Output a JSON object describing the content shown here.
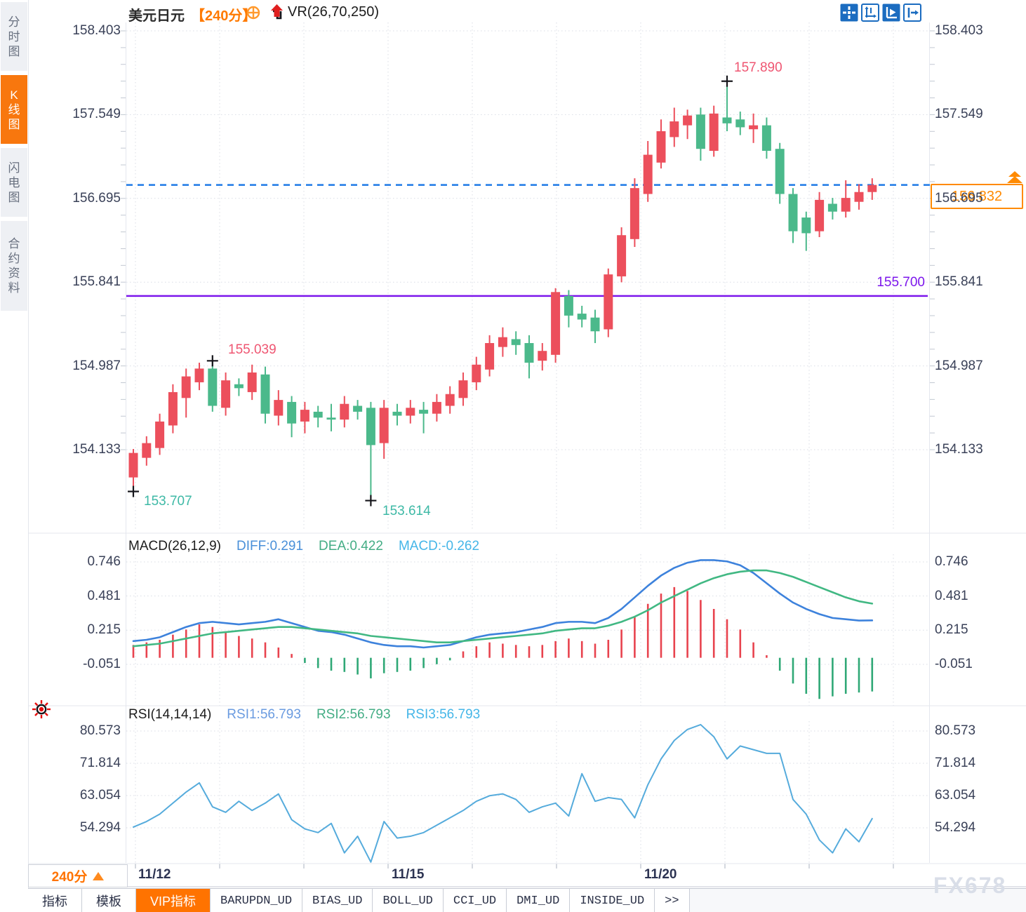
{
  "window": {
    "watermark": "FX678"
  },
  "sidebar": {
    "items": [
      {
        "key": "time-chart",
        "label": "分时图",
        "active": false
      },
      {
        "key": "candle-chart",
        "label": "K线图",
        "active": true
      },
      {
        "key": "lightning-chart",
        "label": "闪电图",
        "active": false
      },
      {
        "key": "contract-info",
        "label": "合约资料",
        "active": false
      }
    ]
  },
  "header": {
    "symbol": "美元日元",
    "period": "【240分】",
    "indicator": "VR(26,70,250)"
  },
  "toolbar": {
    "icons": [
      "crosshair",
      "axes-scale",
      "pointer-play",
      "exit-right"
    ]
  },
  "macd_header": {
    "name": "MACD(26,12,9)",
    "diff": "DIFF:0.291",
    "dea": "DEA:0.422",
    "macd": "MACD:-0.262"
  },
  "rsi_header": {
    "name": "RSI(14,14,14)",
    "rsi1": "RSI1:56.793",
    "rsi2": "RSI2:56.793",
    "rsi3": "RSI3:56.793"
  },
  "annotations": {
    "marked_high": "157.890",
    "swing_high": "155.039",
    "low_left": "153.707",
    "low_mid": "153.614",
    "purple_level": "155.700",
    "last_price": "156.832"
  },
  "bottom": {
    "period_label": "240分",
    "tabs": [
      {
        "key": "indicators",
        "label": "指标",
        "cn": true,
        "active": false
      },
      {
        "key": "templates",
        "label": "模板",
        "cn": true,
        "active": false
      },
      {
        "key": "vip-indicators",
        "label": "VIP指标",
        "cn": true,
        "active": true
      },
      {
        "key": "barupdn",
        "label": "BARUPDN_UD",
        "cn": false,
        "active": false
      },
      {
        "key": "bias",
        "label": "BIAS_UD",
        "cn": false,
        "active": false
      },
      {
        "key": "boll",
        "label": "BOLL_UD",
        "cn": false,
        "active": false
      },
      {
        "key": "cci",
        "label": "CCI_UD",
        "cn": false,
        "active": false
      },
      {
        "key": "dmi",
        "label": "DMI_UD",
        "cn": false,
        "active": false
      },
      {
        "key": "inside",
        "label": "INSIDE_UD",
        "cn": false,
        "active": false
      },
      {
        "key": "more",
        "label": ">>",
        "cn": false,
        "active": false
      }
    ]
  },
  "colors": {
    "accent_orange": "#ff7a00",
    "candle_up": "#ec4f5c",
    "candle_down": "#4bb98b",
    "dashed_line_blue": "#1e7ae6",
    "level_purple": "#7c16ec",
    "macd_diff_blue": "#3d82dc",
    "macd_dea_green": "#41b883",
    "rsi_line_blue": "#55abdc",
    "grid": "#d9dde5",
    "axis_text": "#3a4158"
  },
  "chart_data": {
    "type": "candlestick+macd+rsi",
    "title": "美元日元 240分 K线图",
    "price_axis_ticks": [
      "158.403",
      "157.549",
      "156.695",
      "155.841",
      "154.987",
      "154.133"
    ],
    "macd_axis_ticks": [
      "0.746",
      "0.481",
      "0.215",
      "-0.051"
    ],
    "rsi_axis_ticks": [
      "80.573",
      "71.814",
      "63.054",
      "54.294"
    ],
    "x_labels": [
      "11/12",
      "11/15",
      "11/20"
    ],
    "price_range": [
      154.133,
      158.403
    ],
    "levels": {
      "last_price": 156.832,
      "purple_line": 155.7,
      "marked_high": 157.89,
      "swing_high": 155.039,
      "low_left": 153.707,
      "low_mid": 153.614
    },
    "markers": [
      {
        "candle": 0,
        "at": "low"
      },
      {
        "candle": 6,
        "at": "high"
      },
      {
        "candle": 18,
        "at": "low"
      },
      {
        "candle": 45,
        "at": "high"
      }
    ],
    "candles_ochl_note": "arrays are [open, close, low, high]; close>open renders red (CN up), close<open renders green (CN down)",
    "candles": [
      [
        153.85,
        154.1,
        153.707,
        154.14
      ],
      [
        154.05,
        154.2,
        153.97,
        154.27
      ],
      [
        154.15,
        154.42,
        154.08,
        154.5
      ],
      [
        154.38,
        154.72,
        154.3,
        154.8
      ],
      [
        154.66,
        154.88,
        154.46,
        154.96
      ],
      [
        154.82,
        154.96,
        154.74,
        155.02
      ],
      [
        154.96,
        154.58,
        154.52,
        155.039
      ],
      [
        154.56,
        154.84,
        154.48,
        154.92
      ],
      [
        154.8,
        154.76,
        154.68,
        154.86
      ],
      [
        154.72,
        154.92,
        154.64,
        155.0
      ],
      [
        154.9,
        154.5,
        154.4,
        154.98
      ],
      [
        154.48,
        154.64,
        154.38,
        154.74
      ],
      [
        154.62,
        154.4,
        154.26,
        154.68
      ],
      [
        154.42,
        154.54,
        154.3,
        154.62
      ],
      [
        154.52,
        154.46,
        154.36,
        154.58
      ],
      [
        154.46,
        154.44,
        154.32,
        154.6
      ],
      [
        154.44,
        154.6,
        154.36,
        154.68
      ],
      [
        154.58,
        154.52,
        154.44,
        154.64
      ],
      [
        154.56,
        154.18,
        153.614,
        154.62
      ],
      [
        154.2,
        154.56,
        154.04,
        154.64
      ],
      [
        154.52,
        154.48,
        154.38,
        154.6
      ],
      [
        154.48,
        154.56,
        154.4,
        154.64
      ],
      [
        154.54,
        154.5,
        154.3,
        154.62
      ],
      [
        154.5,
        154.62,
        154.42,
        154.7
      ],
      [
        154.58,
        154.7,
        154.5,
        154.78
      ],
      [
        154.66,
        154.84,
        154.58,
        154.92
      ],
      [
        154.82,
        155.0,
        154.74,
        155.08
      ],
      [
        154.95,
        155.22,
        154.88,
        155.3
      ],
      [
        155.18,
        155.28,
        155.08,
        155.38
      ],
      [
        155.26,
        155.2,
        155.1,
        155.34
      ],
      [
        155.22,
        155.02,
        154.86,
        155.3
      ],
      [
        155.04,
        155.14,
        154.94,
        155.22
      ],
      [
        155.1,
        155.74,
        155.02,
        155.78
      ],
      [
        155.7,
        155.5,
        155.38,
        155.76
      ],
      [
        155.52,
        155.46,
        155.38,
        155.6
      ],
      [
        155.48,
        155.34,
        155.22,
        155.56
      ],
      [
        155.36,
        155.92,
        155.28,
        155.98
      ],
      [
        155.9,
        156.32,
        155.84,
        156.4
      ],
      [
        156.28,
        156.8,
        156.2,
        156.9
      ],
      [
        156.74,
        157.14,
        156.66,
        157.28
      ],
      [
        157.06,
        157.38,
        157.0,
        157.5
      ],
      [
        157.32,
        157.48,
        157.22,
        157.62
      ],
      [
        157.44,
        157.54,
        157.3,
        157.6
      ],
      [
        157.55,
        157.2,
        157.08,
        157.62
      ],
      [
        157.18,
        157.56,
        157.12,
        157.64
      ],
      [
        157.52,
        157.46,
        157.38,
        157.89
      ],
      [
        157.5,
        157.42,
        157.34,
        157.58
      ],
      [
        157.4,
        157.44,
        157.26,
        157.56
      ],
      [
        157.44,
        157.18,
        157.1,
        157.52
      ],
      [
        157.2,
        156.74,
        156.64,
        157.26
      ],
      [
        156.74,
        156.36,
        156.24,
        156.8
      ],
      [
        156.5,
        156.34,
        156.16,
        156.56
      ],
      [
        156.36,
        156.68,
        156.3,
        156.76
      ],
      [
        156.64,
        156.56,
        156.48,
        156.7
      ],
      [
        156.56,
        156.7,
        156.5,
        156.88
      ],
      [
        156.66,
        156.76,
        156.58,
        156.84
      ],
      [
        156.76,
        156.832,
        156.68,
        156.9
      ]
    ],
    "macd": {
      "diff": [
        0.13,
        0.14,
        0.16,
        0.2,
        0.24,
        0.27,
        0.28,
        0.27,
        0.26,
        0.27,
        0.28,
        0.3,
        0.27,
        0.24,
        0.21,
        0.2,
        0.18,
        0.15,
        0.12,
        0.1,
        0.09,
        0.09,
        0.08,
        0.09,
        0.1,
        0.13,
        0.16,
        0.18,
        0.19,
        0.2,
        0.22,
        0.24,
        0.27,
        0.28,
        0.28,
        0.27,
        0.31,
        0.38,
        0.47,
        0.56,
        0.64,
        0.7,
        0.74,
        0.76,
        0.76,
        0.75,
        0.72,
        0.66,
        0.58,
        0.5,
        0.43,
        0.38,
        0.34,
        0.31,
        0.3,
        0.29,
        0.291
      ],
      "dea": [
        0.09,
        0.1,
        0.11,
        0.13,
        0.15,
        0.17,
        0.19,
        0.2,
        0.21,
        0.22,
        0.23,
        0.24,
        0.24,
        0.23,
        0.22,
        0.21,
        0.2,
        0.19,
        0.17,
        0.16,
        0.15,
        0.14,
        0.13,
        0.12,
        0.12,
        0.13,
        0.14,
        0.15,
        0.16,
        0.17,
        0.18,
        0.19,
        0.21,
        0.22,
        0.23,
        0.23,
        0.25,
        0.28,
        0.32,
        0.37,
        0.43,
        0.48,
        0.53,
        0.58,
        0.62,
        0.65,
        0.67,
        0.68,
        0.68,
        0.66,
        0.63,
        0.59,
        0.55,
        0.51,
        0.47,
        0.44,
        0.422
      ],
      "hist": [
        0.1,
        0.12,
        0.14,
        0.18,
        0.22,
        0.26,
        0.24,
        0.2,
        0.17,
        0.15,
        0.12,
        0.08,
        0.03,
        -0.04,
        -0.08,
        -0.1,
        -0.11,
        -0.13,
        -0.16,
        -0.12,
        -0.11,
        -0.1,
        -0.08,
        -0.05,
        -0.02,
        0.05,
        0.09,
        0.12,
        0.11,
        0.1,
        0.09,
        0.1,
        0.13,
        0.15,
        0.13,
        0.11,
        0.14,
        0.22,
        0.32,
        0.42,
        0.5,
        0.55,
        0.52,
        0.45,
        0.38,
        0.3,
        0.22,
        0.12,
        0.02,
        -0.1,
        -0.2,
        -0.28,
        -0.32,
        -0.3,
        -0.28,
        -0.27,
        -0.262
      ]
    },
    "rsi": {
      "values": [
        54.5,
        56,
        58,
        61,
        64,
        66.5,
        60,
        58.5,
        61.5,
        59,
        61,
        63.5,
        56.5,
        54,
        53,
        55.5,
        47.5,
        52,
        45,
        56,
        51.5,
        52,
        53,
        55,
        57,
        59,
        61.5,
        63,
        63.5,
        62,
        58.5,
        60,
        61,
        57.5,
        69,
        61.5,
        62.5,
        62,
        57,
        66,
        73,
        78,
        81,
        82.3,
        79,
        73,
        76.5,
        75.5,
        74.5,
        74.5,
        62,
        58,
        51,
        47.5,
        54,
        50.5,
        56.8
      ]
    }
  }
}
